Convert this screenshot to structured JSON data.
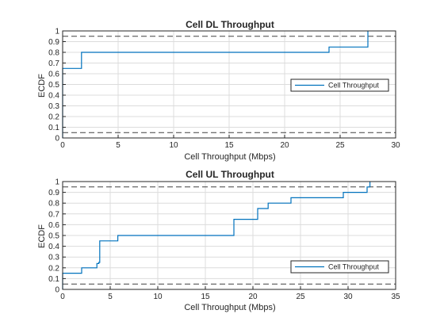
{
  "colors": {
    "series": "#0072bd",
    "reference": "#404040",
    "axes": "#262626",
    "grid": "#dcdcdc"
  },
  "chart_data": [
    {
      "type": "line",
      "title": "Cell DL Throughput",
      "xlabel": "Cell Throughput (Mbps)",
      "ylabel": "ECDF",
      "xlim": [
        0,
        30
      ],
      "ylim": [
        0,
        1
      ],
      "xticks": [
        "0",
        "5",
        "10",
        "15",
        "20",
        "25",
        "30"
      ],
      "yticks": [
        "0",
        "0.1",
        "0.2",
        "0.3",
        "0.4",
        "0.5",
        "0.6",
        "0.7",
        "0.8",
        "0.9",
        "1"
      ],
      "grid": true,
      "legend": "right",
      "reference_lines": [
        0.05,
        0.95
      ],
      "series": [
        {
          "name": "Cell Throughput",
          "step": true,
          "x": [
            0,
            0,
            1.7,
            1.7,
            24.0,
            24.0,
            27.5,
            27.5,
            27.5
          ],
          "y": [
            0,
            0.65,
            0.65,
            0.8,
            0.8,
            0.85,
            0.85,
            1.0,
            1.0
          ]
        }
      ]
    },
    {
      "type": "line",
      "title": "Cell UL Throughput",
      "xlabel": "Cell Throughput (Mbps)",
      "ylabel": "ECDF",
      "xlim": [
        0,
        35
      ],
      "ylim": [
        0,
        1
      ],
      "xticks": [
        "0",
        "5",
        "10",
        "15",
        "20",
        "25",
        "30",
        "35"
      ],
      "yticks": [
        "0",
        "0.1",
        "0.2",
        "0.3",
        "0.4",
        "0.5",
        "0.6",
        "0.7",
        "0.8",
        "0.9",
        "1"
      ],
      "grid": true,
      "legend": "bottom-right",
      "reference_lines": [
        0.05,
        0.95
      ],
      "series": [
        {
          "name": "Cell Throughput",
          "step": true,
          "x": [
            0,
            0,
            2.0,
            2.0,
            3.6,
            3.6,
            3.8,
            3.8,
            3.9,
            3.9,
            5.8,
            5.8,
            18.0,
            18.0,
            20.5,
            20.5,
            21.6,
            21.6,
            24.0,
            24.0,
            29.5,
            29.5,
            32.0,
            32.0,
            32.3,
            32.3
          ],
          "y": [
            0,
            0.15,
            0.15,
            0.2,
            0.2,
            0.24,
            0.24,
            0.25,
            0.25,
            0.45,
            0.45,
            0.5,
            0.5,
            0.65,
            0.65,
            0.75,
            0.75,
            0.8,
            0.8,
            0.85,
            0.85,
            0.9,
            0.9,
            0.95,
            0.95,
            1.0
          ]
        }
      ]
    }
  ]
}
